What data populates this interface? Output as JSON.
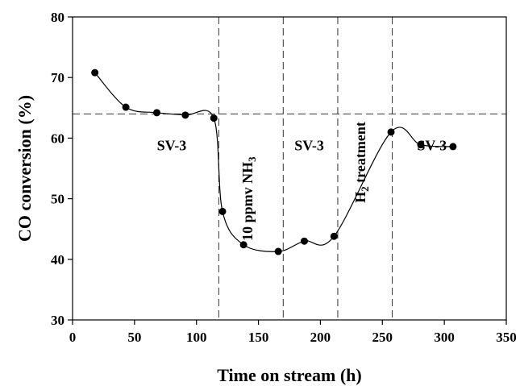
{
  "chart_data": {
    "type": "scatter",
    "title": "",
    "xlabel": "Time on stream (h)",
    "ylabel": "CO conversion (%)",
    "xlim": [
      0,
      350
    ],
    "ylim": [
      30,
      80
    ],
    "xticks": [
      "0",
      "50",
      "100",
      "150",
      "200",
      "250",
      "300",
      "350"
    ],
    "yticks": [
      "30",
      "40",
      "50",
      "60",
      "70",
      "80"
    ],
    "grid": false,
    "legend": "none",
    "series": [
      {
        "points": [
          {
            "x": 18,
            "y": 70.8
          },
          {
            "x": 43,
            "y": 65.1
          },
          {
            "x": 68,
            "y": 64.2
          },
          {
            "x": 91,
            "y": 63.8
          },
          {
            "x": 114,
            "y": 63.3
          },
          {
            "x": 121,
            "y": 47.9
          },
          {
            "x": 138,
            "y": 42.4
          },
          {
            "x": 166,
            "y": 41.3
          },
          {
            "x": 187,
            "y": 43.0
          },
          {
            "x": 211,
            "y": 43.8
          },
          {
            "x": 257,
            "y": 61.0
          },
          {
            "x": 281,
            "y": 58.9
          },
          {
            "x": 307,
            "y": 58.6
          }
        ],
        "smoothed_line": true,
        "color": "#000000"
      }
    ],
    "reference_lines": {
      "horizontal": [
        {
          "y": 64.0,
          "style": "dashed"
        }
      ],
      "vertical": [
        {
          "x": 118,
          "style": "dashed"
        },
        {
          "x": 170,
          "style": "dashed"
        },
        {
          "x": 214,
          "style": "dashed"
        },
        {
          "x": 258,
          "style": "dashed"
        }
      ]
    },
    "annotations": [
      {
        "text": "SV-3",
        "x": 80,
        "y": 58,
        "rotation": 0
      },
      {
        "main": "10 ppmv NH",
        "sub": "3",
        "x": 145,
        "y": 50,
        "rotation": -90
      },
      {
        "text": "SV-3",
        "x": 191,
        "y": 58,
        "rotation": 0
      },
      {
        "main": "H",
        "sub": "2",
        "tail": " treatment",
        "x": 236,
        "y": 56,
        "rotation": -90
      },
      {
        "text": "SV-3",
        "x": 290,
        "y": 58,
        "rotation": 0
      }
    ]
  }
}
